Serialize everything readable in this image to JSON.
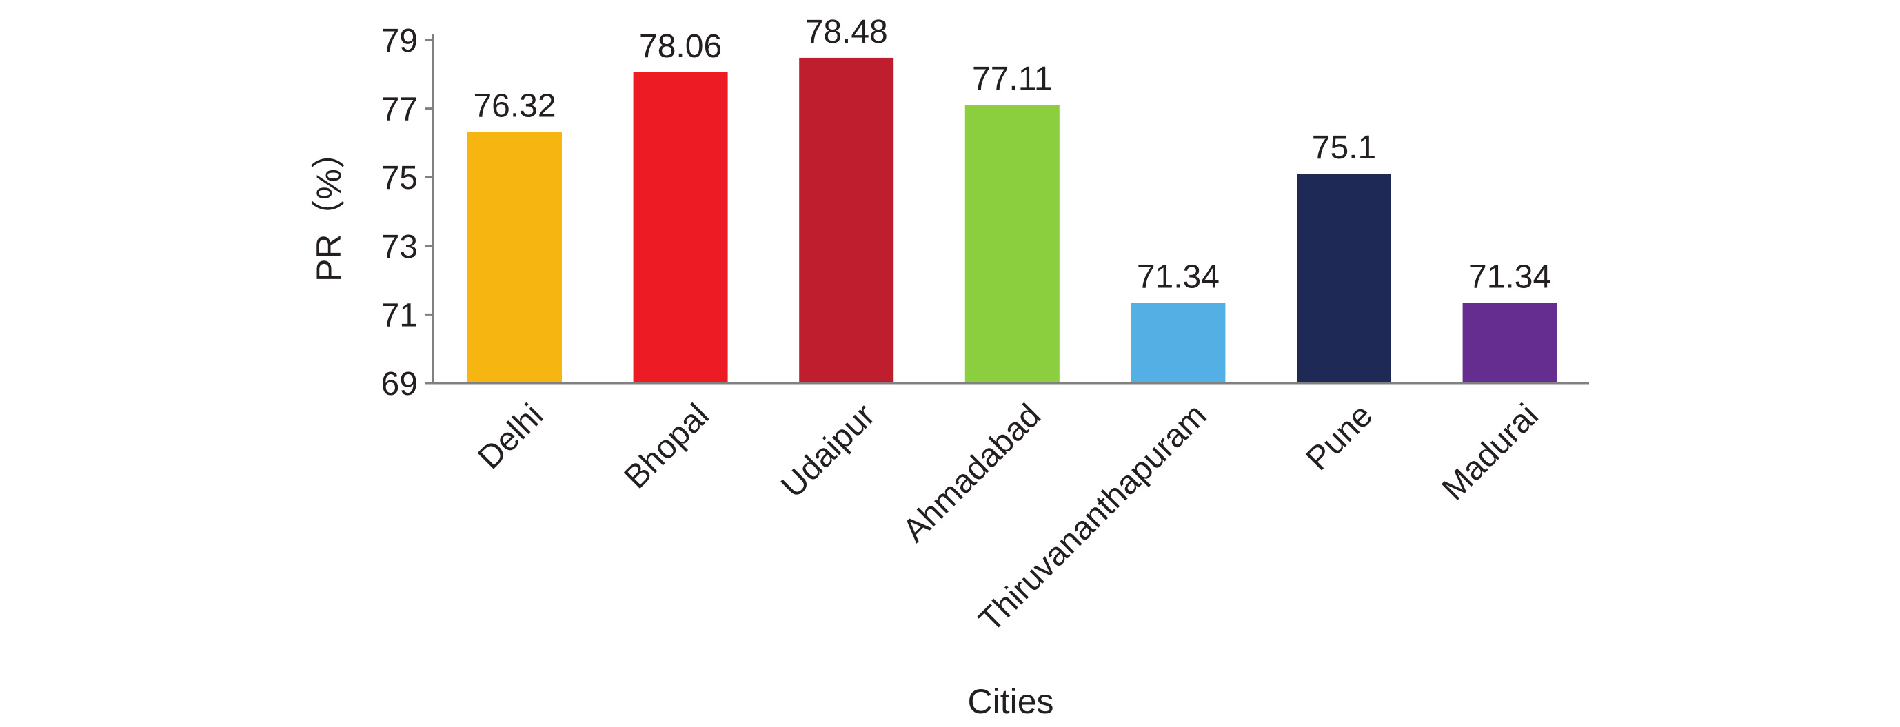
{
  "chart_data": {
    "type": "bar",
    "title": "",
    "xlabel": "Cities",
    "ylabel": "PR（%）",
    "ylim": [
      69,
      79
    ],
    "yticks": [
      69,
      71,
      73,
      75,
      77,
      79
    ],
    "categories": [
      "Delhi",
      "Bhopal",
      "Udaipur",
      "Ahmadabad",
      "Thiruvananthapuram",
      "Pune",
      "Madurai"
    ],
    "values": [
      76.32,
      78.06,
      78.48,
      77.11,
      71.34,
      75.1,
      71.34
    ],
    "value_labels": [
      "76.32",
      "78.06",
      "78.48",
      "77.11",
      "71.34",
      "75.1",
      "71.34"
    ],
    "colors": [
      "#f7b512",
      "#ed1c24",
      "#be1e2d",
      "#8bcf3f",
      "#54b0e4",
      "#1f2956",
      "#662d91"
    ],
    "axis_color": "#808080",
    "grid": false,
    "legend": "none"
  }
}
